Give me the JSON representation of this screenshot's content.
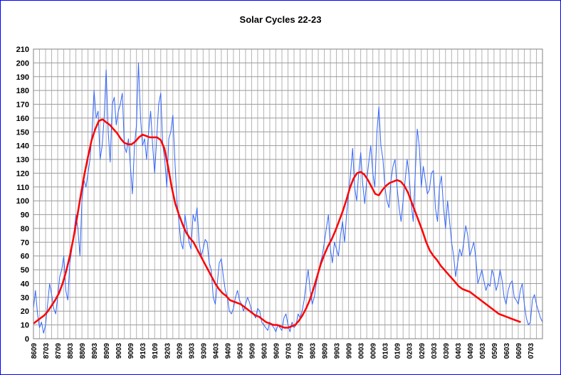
{
  "chart_data": {
    "type": "line",
    "title": "Solar Cycles 22-23",
    "xlabel": "",
    "ylabel": "",
    "ylim": [
      0,
      210
    ],
    "ytick_step": 10,
    "grid": true,
    "legend": "none",
    "x_tick_labels": [
      "8609",
      "8703",
      "8709",
      "8803",
      "8809",
      "8903",
      "8909",
      "9003",
      "9009",
      "9103",
      "9109",
      "9203",
      "9209",
      "9303",
      "9309",
      "9403",
      "9409",
      "9503",
      "9509",
      "9603",
      "9609",
      "9703",
      "9709",
      "9803",
      "9809",
      "9903",
      "9909",
      "0003",
      "0009",
      "0103",
      "0109",
      "0203",
      "0209",
      "0303",
      "0309",
      "0403",
      "0409",
      "0503",
      "0509",
      "0603",
      "0609",
      "0703"
    ],
    "series": [
      {
        "color": "#3366ff",
        "values": [
          22,
          35,
          18,
          8,
          12,
          4,
          10,
          25,
          40,
          32,
          22,
          18,
          30,
          45,
          50,
          60,
          35,
          28,
          55,
          65,
          75,
          90,
          80,
          60,
          100,
          115,
          110,
          120,
          130,
          150,
          180,
          160,
          165,
          130,
          140,
          160,
          195,
          150,
          128,
          170,
          175,
          155,
          165,
          170,
          178,
          140,
          135,
          145,
          125,
          105,
          140,
          155,
          200,
          160,
          140,
          145,
          130,
          150,
          165,
          140,
          120,
          145,
          170,
          178,
          140,
          130,
          110,
          145,
          150,
          162,
          130,
          100,
          85,
          70,
          65,
          90,
          80,
          70,
          65,
          90,
          85,
          95,
          70,
          60,
          65,
          72,
          70,
          55,
          50,
          30,
          25,
          40,
          55,
          58,
          45,
          35,
          30,
          20,
          18,
          22,
          30,
          35,
          28,
          25,
          20,
          25,
          30,
          26,
          20,
          18,
          15,
          22,
          20,
          12,
          10,
          8,
          6,
          12,
          10,
          8,
          5,
          10,
          8,
          6,
          15,
          18,
          10,
          5,
          12,
          8,
          10,
          18,
          15,
          20,
          28,
          40,
          50,
          35,
          25,
          30,
          40,
          48,
          55,
          60,
          70,
          80,
          90,
          65,
          55,
          70,
          65,
          60,
          75,
          85,
          70,
          90,
          105,
          120,
          138,
          110,
          100,
          120,
          135,
          112,
          98,
          115,
          128,
          140,
          120,
          110,
          150,
          168,
          140,
          130,
          110,
          100,
          95,
          115,
          125,
          130,
          110,
          95,
          85,
          100,
          115,
          130,
          118,
          98,
          85,
          120,
          152,
          140,
          110,
          125,
          115,
          105,
          108,
          120,
          122,
          95,
          85,
          110,
          118,
          95,
          80,
          100,
          85,
          70,
          60,
          45,
          55,
          65,
          60,
          70,
          82,
          75,
          60,
          65,
          70,
          58,
          40,
          45,
          50,
          42,
          35,
          40,
          38,
          50,
          45,
          35,
          40,
          50,
          42,
          30,
          25,
          35,
          40,
          42,
          30,
          28,
          25,
          35,
          40,
          25,
          15,
          10,
          12,
          28,
          32,
          25,
          20,
          15,
          12,
          10,
          18,
          22,
          20,
          15,
          12,
          5,
          10
        ],
        "x_start": 0,
        "x_step": 0.16667
      },
      {
        "color": "#ff0000",
        "values": [
          11,
          13,
          15,
          17,
          20,
          24,
          28,
          33,
          40,
          49,
          60,
          73,
          88,
          104,
          119,
          132,
          144,
          152,
          158,
          159,
          157,
          155,
          152,
          149,
          145,
          142,
          141,
          141,
          143,
          146,
          148,
          147,
          146,
          146,
          146,
          144,
          138,
          125,
          110,
          98,
          90,
          83,
          77,
          73,
          70,
          65,
          60,
          55,
          50,
          45,
          40,
          36,
          33,
          31,
          28,
          27,
          26,
          25,
          23,
          21,
          19,
          17,
          16,
          14,
          12,
          11,
          10,
          10,
          9,
          8,
          8,
          9,
          10,
          13,
          17,
          22,
          28,
          36,
          45,
          54,
          61,
          67,
          72,
          78,
          85,
          92,
          100,
          109,
          116,
          120,
          121,
          119,
          115,
          110,
          105,
          104,
          108,
          111,
          113,
          114,
          115,
          114,
          111,
          106,
          99,
          92,
          85,
          78,
          70,
          64,
          60,
          57,
          53,
          50,
          47,
          44,
          41,
          38,
          36,
          35,
          34,
          32,
          30,
          28,
          26,
          24,
          22,
          20,
          18,
          17,
          16,
          15,
          14,
          13,
          12
        ],
        "x_start": 0,
        "x_step": 0.3
      }
    ]
  }
}
